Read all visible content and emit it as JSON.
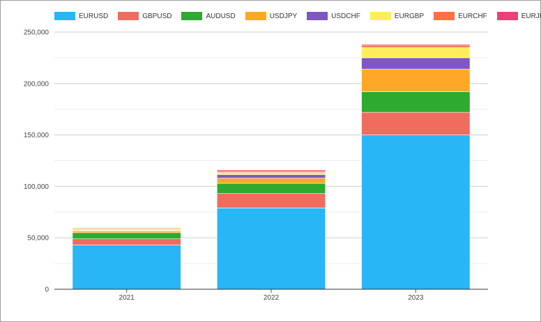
{
  "chart_data": {
    "type": "bar",
    "stacked": true,
    "categories": [
      "2021",
      "2022",
      "2023"
    ],
    "series": [
      {
        "name": "EURUSD",
        "color": "#29b6f6",
        "values": [
          43000,
          79000,
          150000
        ]
      },
      {
        "name": "GBPUSD",
        "color": "#ef6c5e",
        "values": [
          6000,
          14000,
          22000
        ]
      },
      {
        "name": "AUDUSD",
        "color": "#2eaa2e",
        "values": [
          6000,
          10000,
          20000
        ]
      },
      {
        "name": "USDJPY",
        "color": "#ffa726",
        "values": [
          1500,
          5000,
          22000
        ]
      },
      {
        "name": "USDCHF",
        "color": "#7e57c2",
        "values": [
          500,
          3500,
          11000
        ]
      },
      {
        "name": "EURGBP",
        "color": "#ffee58",
        "values": [
          1800,
          2000,
          10000
        ]
      },
      {
        "name": "EURCHF",
        "color": "#ff7043",
        "values": [
          800,
          1500,
          2000
        ]
      },
      {
        "name": "EURJPY",
        "color": "#ec407a",
        "values": [
          400,
          1000,
          1000
        ]
      }
    ],
    "y_ticks": [
      "0",
      "50,000",
      "100,000",
      "150,000",
      "200,000",
      "250,000"
    ],
    "ylim": [
      0,
      250000
    ],
    "grid": true,
    "legend": "top-left",
    "title": "",
    "xlabel": "",
    "ylabel": ""
  }
}
